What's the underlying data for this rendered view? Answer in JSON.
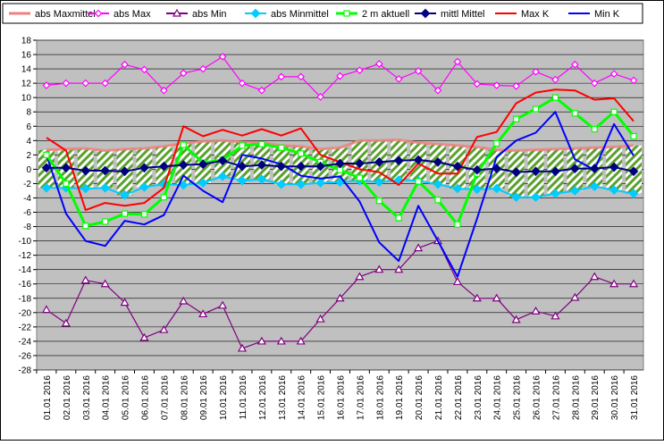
{
  "chart_data": {
    "type": "line",
    "title": "",
    "xlabel": "",
    "ylabel": "",
    "ylim": [
      -28,
      18
    ],
    "y_step": 2,
    "grid": "horizontal",
    "legend_placement": "top",
    "plot_background": "#c0c0c0",
    "categories": [
      "01.01 2016",
      "02.01 2016",
      "03.01 2016",
      "04.01 2016",
      "05.01 2016",
      "06.01 2016",
      "07.01 2016",
      "08.01 2016",
      "09.01 2016",
      "10.01 2016",
      "11.01 2016",
      "12.01 2016",
      "13.01 2016",
      "14.01 2016",
      "15.01 2016",
      "16.01 2016",
      "17.01 2016",
      "18.01 2016",
      "19.01 2016",
      "20.01 2016",
      "21.01 2016",
      "22.01 2016",
      "23.01 2016",
      "24.01 2016",
      "25.01 2016",
      "26.01 2016",
      "27.01 2016",
      "28.01 2016",
      "29.01 2016",
      "30.01 2016",
      "31.01 2016"
    ],
    "legend": [
      "abs Maxmittel",
      "abs Max",
      "abs Min",
      "abs Minmittel",
      "2 m aktuell",
      "mittl Mittel",
      "Max K",
      "Min K"
    ],
    "band": {
      "upper_series": "abs Maxmittel",
      "lower_series": "abs Minmittel",
      "colors": [
        "#5aa02c",
        "#ffffff"
      ]
    },
    "series": [
      {
        "name": "abs Maxmittel",
        "color": "#f08080",
        "marker": "none",
        "values": [
          2.7,
          2.8,
          2.9,
          2.6,
          2.8,
          2.9,
          3.2,
          3.6,
          3.9,
          4.0,
          3.8,
          3.7,
          3.3,
          3.2,
          2.8,
          3.0,
          4.0,
          4.0,
          4.1,
          3.7,
          3.5,
          3.3,
          3.1,
          2.7,
          2.6,
          2.7,
          2.8,
          2.9,
          3.0,
          3.1,
          3.3
        ]
      },
      {
        "name": "abs Max",
        "color": "#ff00ff",
        "marker": "diamond-open",
        "values": [
          11.7,
          12.0,
          12.0,
          12.0,
          14.6,
          13.9,
          11.0,
          13.4,
          14.0,
          15.7,
          12.0,
          11.0,
          12.9,
          12.9,
          10.1,
          13.0,
          13.8,
          14.7,
          12.6,
          13.7,
          11.0,
          15.0,
          11.9,
          11.7,
          11.6,
          13.6,
          12.5,
          14.6,
          12.0,
          13.3,
          12.4
        ]
      },
      {
        "name": "abs Min",
        "color": "#800080",
        "marker": "triangle-open",
        "values": [
          -19.6,
          -21.5,
          -15.5,
          -16.0,
          -18.6,
          -23.5,
          -22.4,
          -18.4,
          -20.2,
          -19.0,
          -25.0,
          -24.0,
          -24.0,
          -24.0,
          -20.9,
          -18.0,
          -15.0,
          -14.0,
          -14.0,
          -11.0,
          -10.0,
          -15.7,
          -18.0,
          -18.0,
          -21.0,
          -19.8,
          -20.5,
          -17.9,
          -15.0,
          -16.0,
          -16.0
        ]
      },
      {
        "name": "abs Minmittel",
        "color": "#00ccff",
        "marker": "diamond",
        "values": [
          -2.6,
          -2.6,
          -2.7,
          -2.6,
          -3.6,
          -2.5,
          -2.1,
          -2.2,
          -1.9,
          -1.0,
          -1.6,
          -1.4,
          -2.1,
          -2.1,
          -1.9,
          -1.8,
          -1.6,
          -1.8,
          -1.5,
          -1.6,
          -2.1,
          -2.7,
          -2.8,
          -2.7,
          -3.9,
          -3.9,
          -3.4,
          -3.0,
          -2.4,
          -2.9,
          -3.4
        ]
      },
      {
        "name": "2 m aktuell",
        "color": "#00ff00",
        "marker": "square-open",
        "values": [
          2.0,
          -2.0,
          -7.9,
          -7.3,
          -6.2,
          -6.3,
          -3.9,
          3.4,
          0.9,
          1.3,
          3.3,
          3.5,
          3.0,
          2.2,
          1.0,
          -0.1,
          -1.2,
          -4.4,
          -6.8,
          -1.7,
          -4.3,
          -7.7,
          -0.6,
          3.6,
          7.0,
          8.4,
          10.0,
          7.8,
          5.6,
          8.0,
          4.6
        ]
      },
      {
        "name": "mittl Mittel",
        "color": "#000080",
        "marker": "diamond",
        "values": [
          0.2,
          0.2,
          -0.2,
          -0.2,
          -0.3,
          0.2,
          0.4,
          0.6,
          0.7,
          1.2,
          0.4,
          0.6,
          0.4,
          0.4,
          0.4,
          0.8,
          0.8,
          1.0,
          1.2,
          1.3,
          1.0,
          0.4,
          -0.1,
          0.1,
          -0.4,
          -0.3,
          -0.3,
          0.1,
          0.1,
          0.3,
          -0.3
        ]
      },
      {
        "name": "Max K",
        "color": "#ff0000",
        "marker": "none",
        "values": [
          4.4,
          2.6,
          -5.7,
          -4.7,
          -5.1,
          -4.7,
          -2.6,
          6.0,
          4.6,
          5.5,
          4.7,
          5.6,
          4.7,
          5.7,
          2.0,
          1.0,
          0.0,
          -0.4,
          -2.2,
          0.8,
          -0.6,
          -0.6,
          4.5,
          5.2,
          9.2,
          10.7,
          11.1,
          11.0,
          9.7,
          9.9,
          6.7
        ]
      },
      {
        "name": "Min K",
        "color": "#0000ff",
        "marker": "none",
        "values": [
          2.0,
          -6.2,
          -10.0,
          -10.7,
          -7.2,
          -7.7,
          -6.4,
          -0.9,
          -3.0,
          -4.6,
          2.0,
          1.5,
          0.7,
          -0.9,
          -1.3,
          -1.0,
          -4.5,
          -10.2,
          -12.8,
          -5.1,
          -10.0,
          -15.0,
          -6.9,
          1.7,
          4.0,
          5.1,
          8.0,
          1.4,
          -0.1,
          6.3,
          1.9
        ]
      }
    ]
  }
}
